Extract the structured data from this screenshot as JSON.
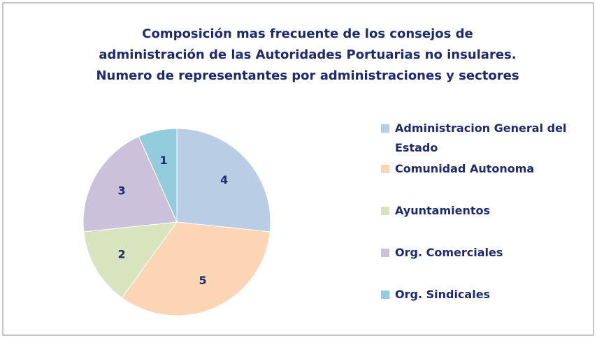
{
  "chart_data": {
    "type": "pie",
    "title": [
      "Composición mas frecuente de los consejos de",
      "administración de las Autoridades Portuarias no insulares.",
      "Numero de representantes por administraciones y sectores"
    ],
    "categories": [
      "Administracion General del Estado",
      "Comunidad Autonoma",
      "Ayuntamientos",
      "Org. Comerciales",
      "Org. Sindicales"
    ],
    "values": [
      4,
      5,
      2,
      3,
      1
    ],
    "colors": [
      "#b9cde5",
      "#fcd5b5",
      "#d7e4bd",
      "#ccc1da",
      "#93cddd"
    ],
    "legend": "right"
  }
}
